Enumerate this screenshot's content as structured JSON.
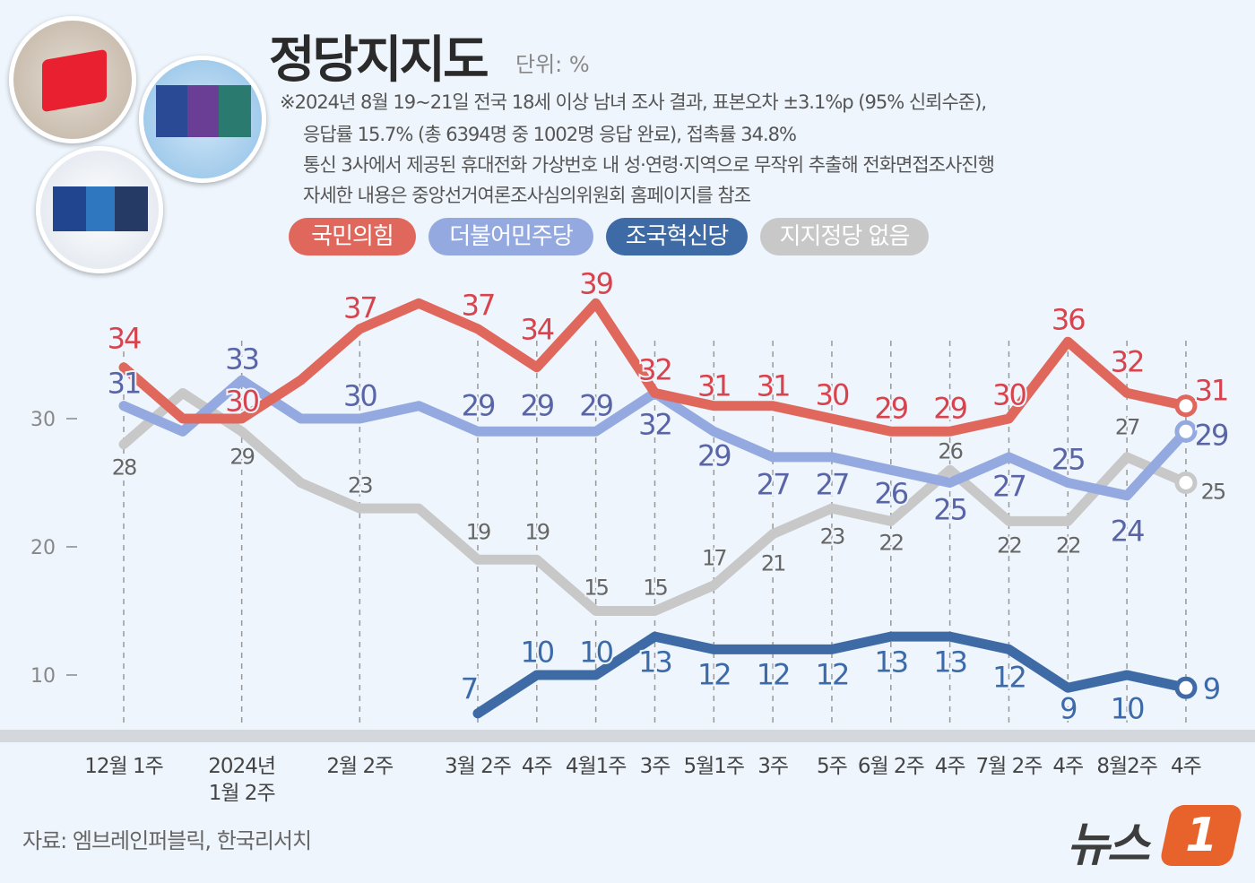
{
  "header": {
    "title": "정당지지도",
    "unit": "단위: %",
    "notes": [
      "※2024년 8월 19~21일 전국 18세 이상 남녀 조사 결과, 표본오차 ±3.1%p (95% 신뢰수준),",
      "응답률 15.7% (총 6394명 중 1002명 응답 완료), 접촉률 34.8%",
      "통신 3사에서 제공된 휴대전화 가상번호 내 성·연령·지역으로 무작위 추출해 전화면접조사진행",
      "자세한 내용은 중앙선거여론조사심의위원회 홈페이지를 참조"
    ]
  },
  "source": "자료: 엠브레인퍼블릭, 한국리서치",
  "logo": {
    "text": "뉴스",
    "mark": "1"
  },
  "chart_data": {
    "type": "line",
    "title": "정당지지도",
    "ylim": [
      5,
      40
    ],
    "yticks": [
      10,
      20,
      30
    ],
    "grid": false,
    "legend_placement": "top",
    "categories": [
      "12월 1주",
      "",
      "2024년\n1월 2주",
      "",
      "2월 2주",
      "",
      "3월 2주",
      "4주",
      "4월1주",
      "3주",
      "5월1주",
      "3주",
      "5주",
      "6월 2주",
      "4주",
      "7월 2주",
      "4주",
      "8월2주",
      "4주"
    ],
    "series": [
      {
        "name": "국민의힘",
        "color": "#e0675c",
        "label_color": "#d9434d",
        "values": [
          34,
          30,
          30,
          33,
          37,
          39,
          37,
          34,
          39,
          32,
          31,
          31,
          30,
          29,
          29,
          30,
          36,
          32,
          31
        ],
        "labeled": [
          1,
          0,
          1,
          0,
          1,
          0,
          1,
          1,
          1,
          1,
          1,
          1,
          1,
          1,
          1,
          1,
          1,
          1,
          1
        ]
      },
      {
        "name": "더불어민주당",
        "color": "#93a9e0",
        "label_color": "#5a65a8",
        "values": [
          31,
          29,
          33,
          30,
          30,
          31,
          29,
          29,
          29,
          32,
          29,
          27,
          27,
          26,
          25,
          27,
          25,
          24,
          29
        ],
        "labeled": [
          1,
          0,
          1,
          0,
          1,
          0,
          1,
          1,
          1,
          1,
          1,
          1,
          1,
          1,
          1,
          1,
          1,
          1,
          1
        ]
      },
      {
        "name": "조국혁신당",
        "color": "#3e6aa6",
        "label_color": "#3d6aa8",
        "values": [
          null,
          null,
          null,
          null,
          null,
          null,
          7,
          10,
          10,
          13,
          12,
          12,
          12,
          13,
          13,
          12,
          9,
          10,
          9
        ],
        "labeled": [
          0,
          0,
          0,
          0,
          0,
          0,
          1,
          1,
          1,
          1,
          1,
          1,
          1,
          1,
          1,
          1,
          1,
          1,
          1
        ]
      },
      {
        "name": "지지정당 없음",
        "color": "#c8c8c8",
        "label_color": "#666666",
        "values": [
          28,
          32,
          29,
          25,
          23,
          23,
          19,
          19,
          15,
          15,
          17,
          21,
          23,
          22,
          26,
          22,
          22,
          27,
          25
        ],
        "labeled": [
          1,
          0,
          1,
          0,
          1,
          0,
          1,
          1,
          1,
          1,
          1,
          1,
          1,
          1,
          1,
          1,
          1,
          1,
          1
        ]
      }
    ]
  }
}
